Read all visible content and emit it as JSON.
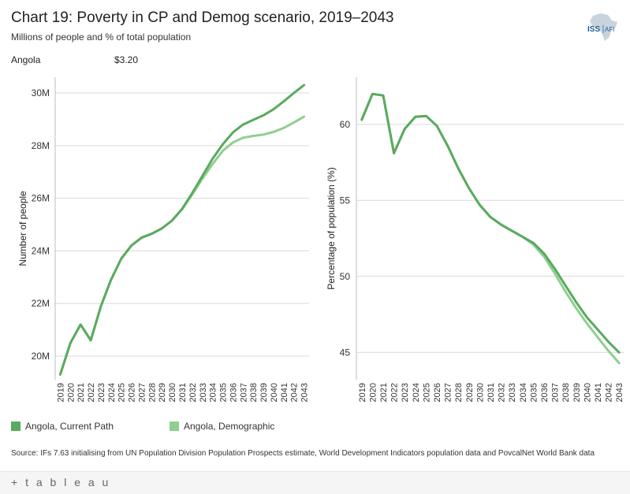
{
  "header": {
    "title": "Chart 19: Poverty in CP and Demog scenario, 2019–2043",
    "subtitle": "Millions of people and % of total population",
    "country": "Angola",
    "threshold": "$3.20"
  },
  "logo": {
    "text_iss": "ISS",
    "text_afi": "AFI"
  },
  "colors": {
    "current_path": "#5aaa5f",
    "demographic": "#8ecf8f",
    "grid": "#d9d9d9"
  },
  "chart_data": [
    {
      "type": "line",
      "title": "",
      "ylabel": "Number of people",
      "xlabel": "",
      "x": [
        "2019",
        "2020",
        "2021",
        "2022",
        "2023",
        "2024",
        "2025",
        "2026",
        "2027",
        "2028",
        "2029",
        "2030",
        "2031",
        "2032",
        "2033",
        "2034",
        "2035",
        "2036",
        "2037",
        "2038",
        "2039",
        "2040",
        "2041",
        "2042",
        "2043"
      ],
      "ylim": [
        19.1,
        30.6
      ],
      "yticks": [
        20,
        22,
        24,
        26,
        28,
        30
      ],
      "ytick_labels": [
        "20M",
        "22M",
        "24M",
        "26M",
        "28M",
        "30M"
      ],
      "series": [
        {
          "name": "Angola,  Current Path",
          "values": [
            19.3,
            20.5,
            21.2,
            20.6,
            21.9,
            22.9,
            23.7,
            24.2,
            24.5,
            24.65,
            24.85,
            25.15,
            25.6,
            26.2,
            26.85,
            27.5,
            28.05,
            28.5,
            28.8,
            28.98,
            29.15,
            29.38,
            29.68,
            30.0,
            30.3
          ]
        },
        {
          "name": "Angola,  Demographic",
          "values": [
            19.3,
            20.5,
            21.2,
            20.6,
            21.9,
            22.9,
            23.7,
            24.2,
            24.5,
            24.65,
            24.85,
            25.15,
            25.58,
            26.15,
            26.75,
            27.3,
            27.8,
            28.12,
            28.3,
            28.37,
            28.42,
            28.52,
            28.67,
            28.88,
            29.1
          ]
        }
      ]
    },
    {
      "type": "line",
      "title": "",
      "ylabel": "Percentage of population (%)",
      "xlabel": "",
      "x": [
        "2019",
        "2020",
        "2021",
        "2022",
        "2023",
        "2024",
        "2025",
        "2026",
        "2027",
        "2028",
        "2029",
        "2030",
        "2031",
        "2032",
        "2033",
        "2034",
        "2035",
        "2036",
        "2037",
        "2038",
        "2039",
        "2040",
        "2041",
        "2042",
        "2043"
      ],
      "ylim": [
        43.2,
        63.1
      ],
      "yticks": [
        45,
        50,
        55,
        60
      ],
      "ytick_labels": [
        "45",
        "50",
        "55",
        "60"
      ],
      "series": [
        {
          "name": "Angola,  Current Path",
          "values": [
            60.3,
            62.0,
            61.9,
            58.1,
            59.7,
            60.5,
            60.55,
            59.9,
            58.6,
            57.1,
            55.8,
            54.7,
            53.9,
            53.4,
            53.0,
            52.6,
            52.2,
            51.5,
            50.5,
            49.4,
            48.3,
            47.3,
            46.5,
            45.7,
            45.0
          ]
        },
        {
          "name": "Angola,  Demographic",
          "values": [
            60.3,
            62.0,
            61.9,
            58.1,
            59.7,
            60.5,
            60.55,
            59.9,
            58.6,
            57.1,
            55.8,
            54.7,
            53.9,
            53.4,
            53.0,
            52.6,
            52.1,
            51.3,
            50.2,
            49.0,
            47.9,
            46.9,
            46.0,
            45.1,
            44.3
          ]
        }
      ]
    }
  ],
  "legend": [
    {
      "label": "Angola,  Current Path"
    },
    {
      "label": "Angola,  Demographic"
    }
  ],
  "source": "Source: IFs 7.63 initialising from UN Population Division Population Prospects estimate, World Development Indicators population data and PovcalNet World Bank data",
  "footer": {
    "brand": "+ t a b l e a u"
  }
}
